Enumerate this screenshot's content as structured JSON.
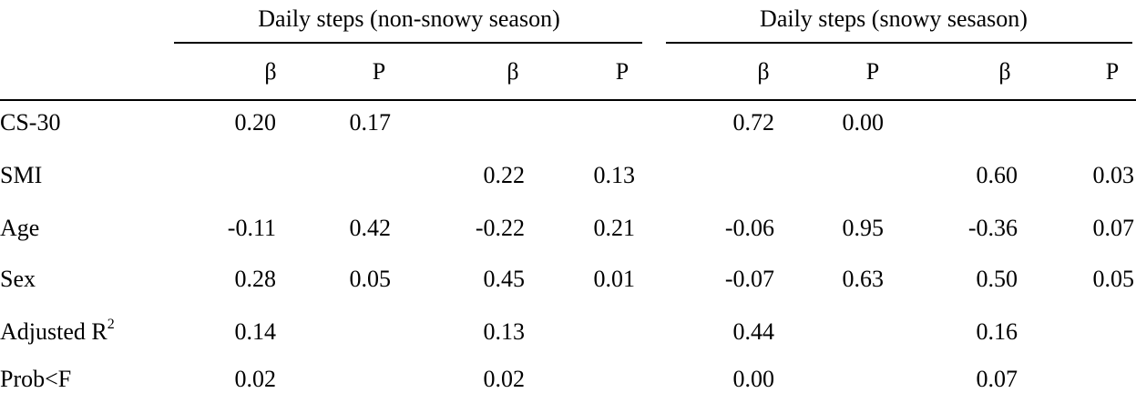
{
  "table": {
    "groups": [
      {
        "label": "Daily steps (non-snowy season)"
      },
      {
        "label": "Daily steps (snowy sesason)"
      }
    ],
    "subheaders": [
      "β",
      "P",
      "β",
      "P",
      "β",
      "P",
      "β",
      "P"
    ],
    "rows": [
      {
        "label": "CS-30",
        "label_sup": "",
        "cells": [
          "0.20",
          "0.17",
          "",
          "",
          "0.72",
          "0.00",
          "",
          ""
        ]
      },
      {
        "label": "SMI",
        "label_sup": "",
        "cells": [
          "",
          "",
          "0.22",
          "0.13",
          "",
          "",
          "0.60",
          "0.03"
        ]
      },
      {
        "label": "Age",
        "label_sup": "",
        "cells": [
          "-0.11",
          "0.42",
          "-0.22",
          "0.21",
          "-0.06",
          "0.95",
          "-0.36",
          "0.07"
        ]
      },
      {
        "label": "Sex",
        "label_sup": "",
        "cells": [
          "0.28",
          "0.05",
          "0.45",
          "0.01",
          "-0.07",
          "0.63",
          "0.50",
          "0.05"
        ]
      },
      {
        "label": "Adjusted R",
        "label_sup": "2",
        "cells": [
          "0.14",
          "",
          "0.13",
          "",
          "0.44",
          "",
          "0.16",
          ""
        ]
      },
      {
        "label": "Prob<F",
        "label_sup": "",
        "cells": [
          "0.02",
          "",
          "0.02",
          "",
          "0.00",
          "",
          "0.07",
          ""
        ]
      }
    ]
  }
}
